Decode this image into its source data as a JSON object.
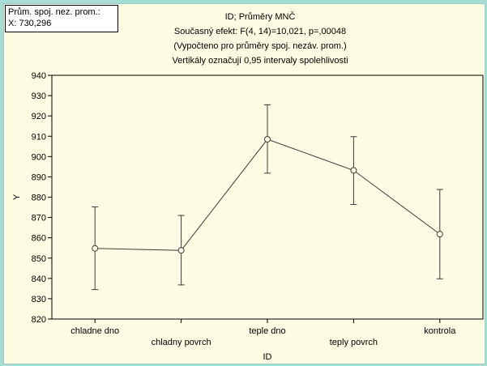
{
  "info_box": {
    "line1": "Prům. spoj. nez. prom.:",
    "line2": "X: 730,296"
  },
  "chart_data": {
    "type": "line",
    "title_lines": [
      "ID; Průměry MNČ",
      "Současný efekt: F(4, 14)=10,021, p=,00048",
      "(Vypočteno pro průměry spoj. nezáv. prom.)",
      "Vertikály označují 0,95 intervaly spolehlivosti"
    ],
    "xlabel": "ID",
    "ylabel": "Y",
    "ylim": [
      820,
      940
    ],
    "yticks": [
      820,
      830,
      840,
      850,
      860,
      870,
      880,
      890,
      900,
      910,
      920,
      930,
      940
    ],
    "grid": false,
    "categories": [
      "chladne dno",
      "chladny povrch",
      "teple dno",
      "teply povrch",
      "kontrola"
    ],
    "values": [
      854.8,
      853.8,
      908.5,
      893.2,
      861.8
    ],
    "ci_lower": [
      834.5,
      836.8,
      891.8,
      876.4,
      839.8
    ],
    "ci_upper": [
      875.2,
      871.0,
      925.5,
      909.8,
      883.8
    ],
    "colors": {
      "line": "#3c3c3c",
      "background": "#fdfde3",
      "outer": "#a6dcd3"
    }
  }
}
